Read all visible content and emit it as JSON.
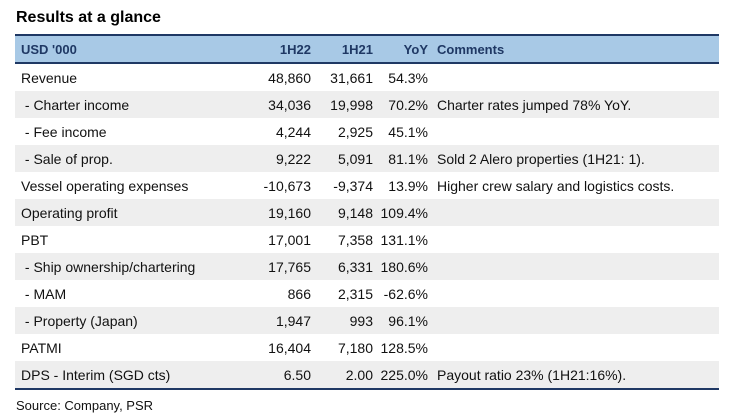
{
  "title": "Results at a glance",
  "header": {
    "label": "USD '000",
    "col1": "1H22",
    "col2": "1H21",
    "col3": "YoY",
    "comments": "Comments"
  },
  "rows": [
    {
      "label": "Revenue",
      "v1": "48,860",
      "v2": "31,661",
      "v3": "54.3%",
      "comment": ""
    },
    {
      "label": " - Charter income",
      "v1": "34,036",
      "v2": "19,998",
      "v3": "70.2%",
      "comment": "Charter rates jumped 78% YoY."
    },
    {
      "label": " - Fee income",
      "v1": "4,244",
      "v2": "2,925",
      "v3": "45.1%",
      "comment": ""
    },
    {
      "label": " - Sale of prop.",
      "v1": "9,222",
      "v2": "5,091",
      "v3": "81.1%",
      "comment": "Sold 2 Alero properties (1H21: 1)."
    },
    {
      "label": "Vessel operating expenses",
      "v1": "-10,673",
      "v2": "-9,374",
      "v3": "13.9%",
      "comment": "Higher crew salary and logistics costs."
    },
    {
      "label": "Operating profit",
      "v1": "19,160",
      "v2": "9,148",
      "v3": "109.4%",
      "comment": ""
    },
    {
      "label": "PBT",
      "v1": "17,001",
      "v2": "7,358",
      "v3": "131.1%",
      "comment": ""
    },
    {
      "label": " - Ship ownership/chartering",
      "v1": "17,765",
      "v2": "6,331",
      "v3": "180.6%",
      "comment": ""
    },
    {
      "label": " - MAM",
      "v1": "866",
      "v2": "2,315",
      "v3": "-62.6%",
      "comment": ""
    },
    {
      "label": " - Property (Japan)",
      "v1": "1,947",
      "v2": "993",
      "v3": "96.1%",
      "comment": ""
    },
    {
      "label": "PATMI",
      "v1": "16,404",
      "v2": "7,180",
      "v3": "128.5%",
      "comment": ""
    },
    {
      "label": "DPS - Interim (SGD cts)",
      "v1": "6.50",
      "v2": "2.00",
      "v3": "225.0%",
      "comment": "Payout ratio 23% (1H21:16%)."
    }
  ],
  "source": "Source: Company, PSR"
}
